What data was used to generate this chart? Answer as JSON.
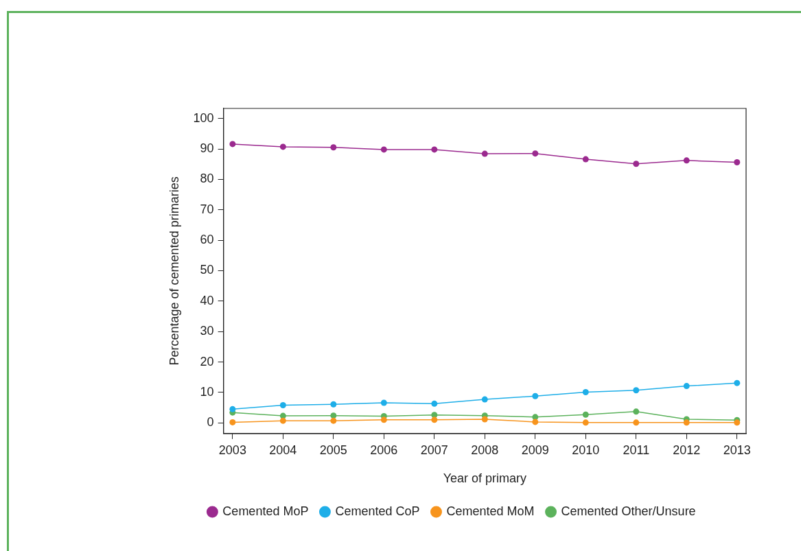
{
  "chart_data": {
    "type": "line",
    "xlabel": "Year of primary",
    "ylabel": "Percentage of cemented primaries",
    "x": [
      2003,
      2004,
      2005,
      2006,
      2007,
      2008,
      2009,
      2010,
      2011,
      2012,
      2013
    ],
    "xlim": [
      2002.82,
      2013.18
    ],
    "xticks": [
      2003,
      2004,
      2005,
      2006,
      2007,
      2008,
      2009,
      2010,
      2011,
      2012,
      2013
    ],
    "ylim": [
      -3.5,
      103.3
    ],
    "yticks": [
      0,
      10,
      20,
      30,
      40,
      50,
      60,
      70,
      80,
      90,
      100
    ],
    "series": [
      {
        "name": "Cemented MoP",
        "color": "#9b2a8f",
        "values": [
          91.6,
          90.7,
          90.5,
          89.8,
          89.8,
          88.4,
          88.5,
          86.6,
          85.1,
          86.2,
          85.6
        ]
      },
      {
        "name": "Cemented CoP",
        "color": "#1eaee8",
        "values": [
          4.5,
          5.8,
          6.1,
          6.6,
          6.3,
          7.7,
          8.8,
          10.1,
          10.7,
          12.1,
          13.1
        ]
      },
      {
        "name": "Cemented MoM",
        "color": "#f7941d",
        "values": [
          0.2,
          0.7,
          0.7,
          1.0,
          1.0,
          1.2,
          0.3,
          0.1,
          0.1,
          0.1,
          0.1
        ]
      },
      {
        "name": "Cemented Other/Unsure",
        "color": "#5cb25c",
        "values": [
          3.4,
          2.3,
          2.4,
          2.2,
          2.6,
          2.4,
          1.9,
          2.7,
          3.7,
          1.2,
          0.9
        ]
      }
    ],
    "grid": false,
    "legend": "bottom",
    "marker": "circle",
    "line_style": "solid"
  }
}
